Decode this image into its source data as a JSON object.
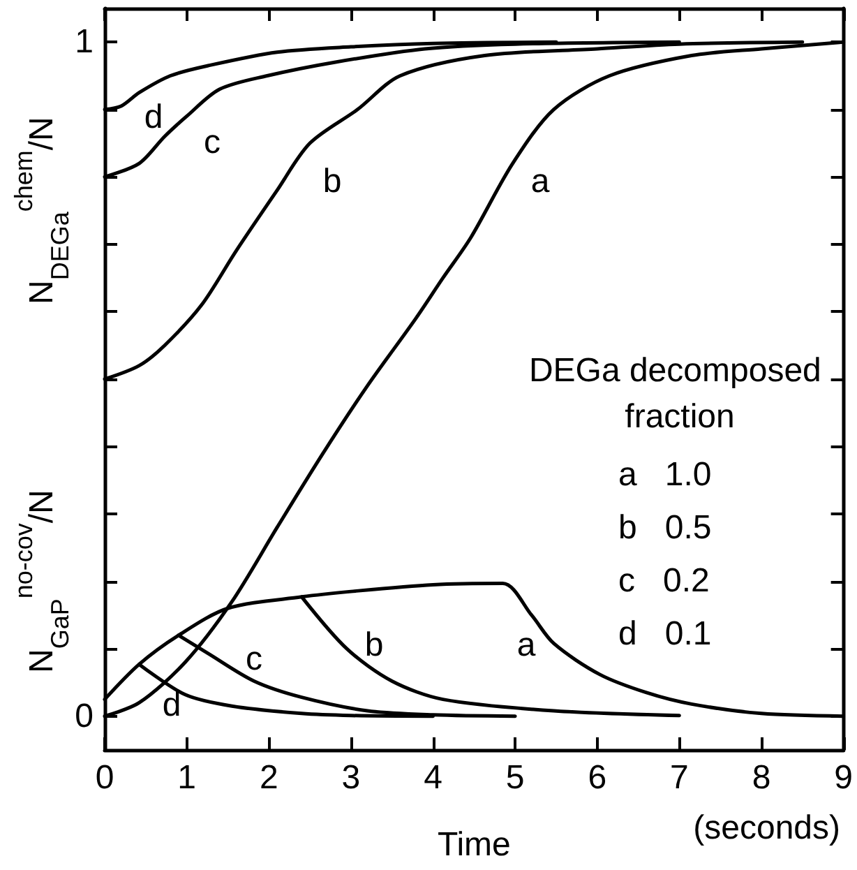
{
  "chart_data": {
    "type": "line",
    "ylabel": "N$_{DEGa}$$^{chem}$/N",
    "xlabel": "Time",
    "legend_title": "DEGa decomposed fraction",
    "annotations": [
      "N$_{GaP}$$^{no-cov}$/N",
      "(seconds)",
      "a   1.0",
      "b   0.5",
      "c   0.2",
      "d   0.1",
      "d",
      "c",
      "b",
      "a",
      "d",
      "c",
      "b",
      "a"
    ],
    "xlim": [
      0,
      9
    ],
    "xticks": [
      0,
      1,
      2,
      3,
      4,
      5,
      6,
      7,
      8,
      9
    ],
    "ylim": [
      -0.05,
      1.05
    ],
    "yticks": [
      0,
      {
        "value": 0.1,
        "label": null
      },
      {
        "value": 0.2,
        "label": null
      },
      {
        "value": 0.3,
        "label": null
      },
      {
        "value": 0.4,
        "label": null
      },
      {
        "value": 0.5,
        "label": null
      },
      {
        "value": 0.6,
        "label": null
      },
      {
        "value": 0.7,
        "label": null
      },
      {
        "value": 0.8,
        "label": null
      },
      {
        "value": 0.9,
        "label": null
      },
      1
    ],
    "marker": "none",
    "line_style": "solid",
    "series": [
      {
        "color": "#000000",
        "x": [
          0,
          0.42,
          0.98,
          1.55,
          2.1,
          2.66,
          3.2,
          3.79,
          4.12,
          4.46,
          4.97,
          5.47,
          6.15,
          7.15,
          8,
          9
        ],
        "values": [
          0,
          0.02,
          0.08,
          0.17,
          0.28,
          0.39,
          0.49,
          0.59,
          0.65,
          0.71,
          0.82,
          0.9,
          0.95,
          0.98,
          0.99,
          1
        ]
      },
      {
        "color": "#000000",
        "x": [
          0,
          0.42,
          0.73,
          1.18,
          1.6,
          2.1,
          2.5,
          3.08,
          3.6,
          4.63,
          6,
          7,
          8.5
        ],
        "values": [
          0.5,
          0.52,
          0.55,
          0.61,
          0.69,
          0.78,
          0.85,
          0.9,
          0.95,
          0.98,
          0.99,
          0.997,
          1
        ]
      },
      {
        "color": "#000000",
        "x": [
          0,
          0.42,
          0.73,
          1.0,
          1.4,
          1.98,
          2.8,
          3.9,
          5,
          7
        ],
        "values": [
          0.8,
          0.82,
          0.86,
          0.89,
          0.93,
          0.95,
          0.97,
          0.99,
          0.997,
          1
        ]
      },
      {
        "color": "#000000",
        "x": [
          0,
          0.2,
          0.42,
          0.8,
          1.26,
          2.1,
          3,
          4,
          5.5
        ],
        "values": [
          0.9,
          0.905,
          0.925,
          0.95,
          0.965,
          0.985,
          0.993,
          0.998,
          1
        ]
      },
      {
        "color": "#000000",
        "x": [
          0,
          0.42,
          0.9,
          1.5,
          2.4,
          3,
          4,
          4.85,
          5.2,
          5.47,
          6.03,
          6.6,
          7.15,
          8,
          9
        ],
        "values": [
          0.025,
          0.077,
          0.12,
          0.16,
          0.177,
          0.185,
          0.195,
          0.197,
          0.15,
          0.108,
          0.062,
          0.035,
          0.018,
          0.004,
          0
        ]
      },
      {
        "color": "#000000",
        "x": [
          2.4,
          2.95,
          3.5,
          4.12,
          5.47,
          7
        ],
        "values": [
          0.177,
          0.1,
          0.052,
          0.025,
          0.008,
          0.001
        ]
      },
      {
        "color": "#000000",
        "x": [
          0.9,
          1.26,
          1.82,
          2.4,
          3.2,
          4,
          5
        ],
        "values": [
          0.12,
          0.093,
          0.052,
          0.028,
          0.008,
          0.002,
          0
        ]
      },
      {
        "color": "#000000",
        "x": [
          0.42,
          0.98,
          1.55,
          2.4,
          3,
          4
        ],
        "values": [
          0.077,
          0.032,
          0.015,
          0.004,
          0.001,
          0
        ]
      }
    ]
  }
}
